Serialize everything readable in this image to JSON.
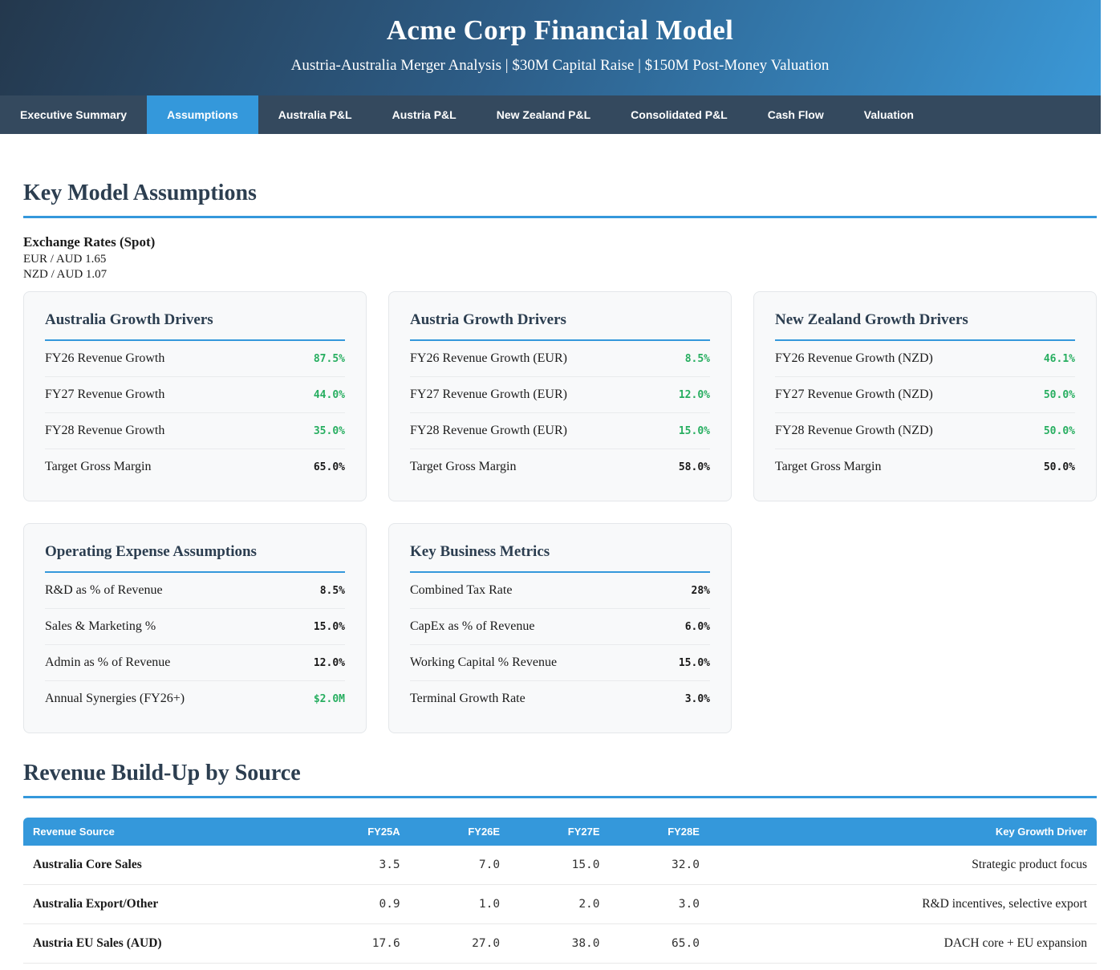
{
  "header": {
    "title": "Acme Corp Financial Model",
    "subtitle": "Austria-Australia Merger Analysis | $30M Capital Raise | $150M Post-Money Valuation"
  },
  "nav": {
    "tabs": [
      "Executive Summary",
      "Assumptions",
      "Australia P&L",
      "Austria P&L",
      "New Zealand P&L",
      "Consolidated P&L",
      "Cash Flow",
      "Valuation"
    ],
    "active_tab": "Assumptions"
  },
  "assumptions": {
    "heading": "Key Model Assumptions",
    "exchange_rates": {
      "title": "Exchange Rates (Spot)",
      "eur_aud": "EUR / AUD 1.65",
      "nzd_aud": "NZD / AUD 1.07"
    },
    "cards": [
      {
        "title": "Australia Growth Drivers",
        "rows": [
          {
            "label": "FY26 Revenue Growth",
            "value": "87.5%"
          },
          {
            "label": "FY27 Revenue Growth",
            "value": "44.0%"
          },
          {
            "label": "FY28 Revenue Growth",
            "value": "35.0%"
          },
          {
            "label": "Target Gross Margin",
            "value": "65.0%"
          }
        ]
      },
      {
        "title": "Austria Growth Drivers",
        "rows": [
          {
            "label": "FY26 Revenue Growth (EUR)",
            "value": "8.5%"
          },
          {
            "label": "FY27 Revenue Growth (EUR)",
            "value": "12.0%"
          },
          {
            "label": "FY28 Revenue Growth (EUR)",
            "value": "15.0%"
          },
          {
            "label": "Target Gross Margin",
            "value": "58.0%"
          }
        ]
      },
      {
        "title": "New Zealand Growth Drivers",
        "rows": [
          {
            "label": "FY26 Revenue Growth (NZD)",
            "value": "46.1%"
          },
          {
            "label": "FY27 Revenue Growth (NZD)",
            "value": "50.0%"
          },
          {
            "label": "FY28 Revenue Growth (NZD)",
            "value": "50.0%"
          },
          {
            "label": "Target Gross Margin",
            "value": "50.0%"
          }
        ]
      },
      {
        "title": "Operating Expense Assumptions",
        "rows": [
          {
            "label": "R&D as % of Revenue",
            "value": "8.5%"
          },
          {
            "label": "Sales & Marketing %",
            "value": "15.0%"
          },
          {
            "label": "Admin as % of Revenue",
            "value": "12.0%"
          },
          {
            "label": "Annual Synergies (FY26+)",
            "value": "$2.0M"
          }
        ]
      },
      {
        "title": "Key Business Metrics",
        "rows": [
          {
            "label": "Combined Tax Rate",
            "value": "28%"
          },
          {
            "label": "CapEx as % of Revenue",
            "value": "6.0%"
          },
          {
            "label": "Working Capital % Revenue",
            "value": "15.0%"
          },
          {
            "label": "Terminal Growth Rate",
            "value": "3.0%"
          }
        ]
      }
    ]
  },
  "revenue": {
    "heading": "Revenue Build-Up by Source",
    "table": {
      "headers": [
        "Revenue Source",
        "FY25A",
        "FY26E",
        "FY27E",
        "FY28E",
        "Key Growth Driver"
      ],
      "rows": [
        {
          "source": "Australia Core Sales",
          "fy25a": "3.5",
          "fy26e": "7.0",
          "fy27e": "15.0",
          "fy28e": "32.0",
          "driver": "Strategic product focus"
        },
        {
          "source": "Australia Export/Other",
          "fy25a": "0.9",
          "fy26e": "1.0",
          "fy27e": "2.0",
          "fy28e": "3.0",
          "driver": "R&D incentives, selective export"
        },
        {
          "source": "Austria EU Sales (AUD)",
          "fy25a": "17.6",
          "fy26e": "27.0",
          "fy27e": "38.0",
          "fy28e": "65.0",
          "driver": "DACH core + EU expansion"
        }
      ]
    }
  },
  "colors": {
    "accent": "#3498db",
    "positive_value": "#27ae60",
    "nav_background": "#34495e",
    "header_gradient_start": "#24384d",
    "header_gradient_end": "#3b9ad9"
  }
}
